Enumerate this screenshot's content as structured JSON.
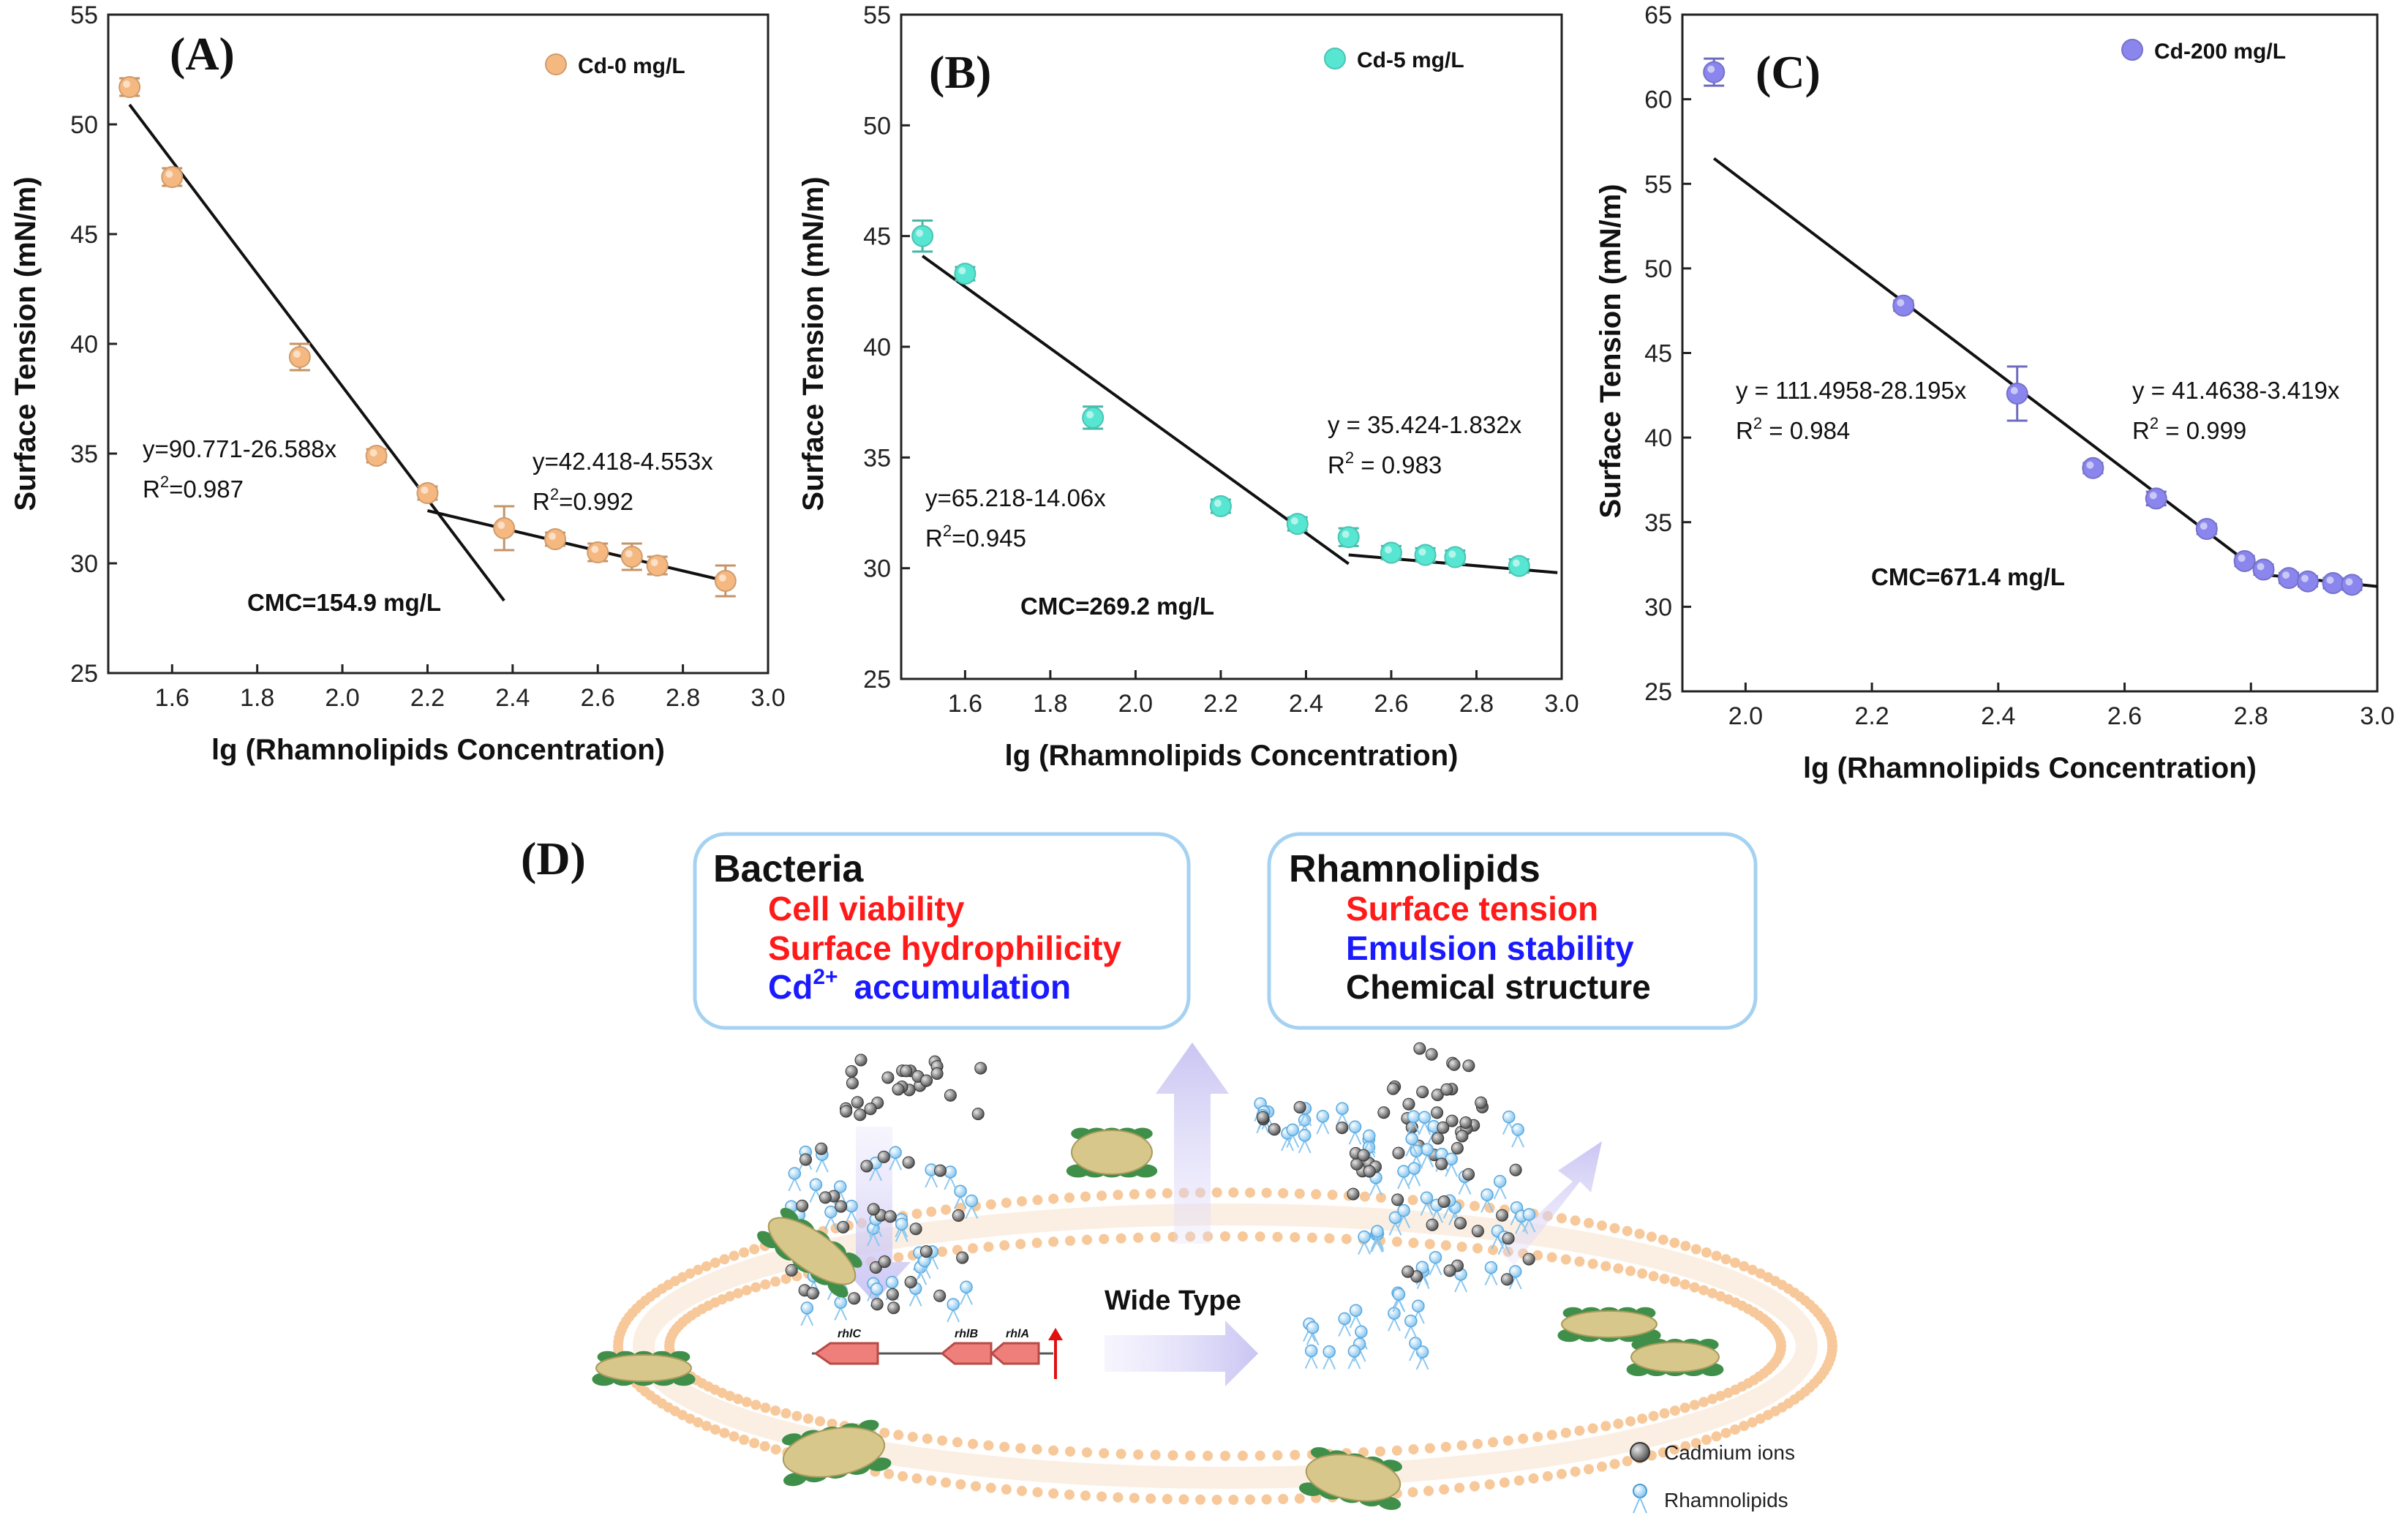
{
  "chart_data": [
    {
      "type": "scatter",
      "panel": "(A)",
      "legend": "Cd-0 mg/L",
      "color": "#f5b880",
      "xlabel": "lg (Rhamnolipids Concentration)",
      "ylabel": "Surface Tension (mN/m)",
      "xlim": [
        1.45,
        3.0
      ],
      "ylim": [
        25,
        55
      ],
      "xticks": [
        "1.6",
        "1.8",
        "2.0",
        "2.2",
        "2.4",
        "2.6",
        "2.8",
        "3.0"
      ],
      "yticks": [
        "25",
        "30",
        "35",
        "40",
        "45",
        "50",
        "55"
      ],
      "points": [
        {
          "x": 1.5,
          "y": 51.7,
          "err": 0.4
        },
        {
          "x": 1.6,
          "y": 47.6,
          "err": 0.4
        },
        {
          "x": 1.9,
          "y": 39.4,
          "err": 0.6
        },
        {
          "x": 2.08,
          "y": 34.9,
          "err": 0.3
        },
        {
          "x": 2.2,
          "y": 33.2,
          "err": 0.3
        },
        {
          "x": 2.38,
          "y": 31.6,
          "err": 1.0
        },
        {
          "x": 2.5,
          "y": 31.1,
          "err": 0.3
        },
        {
          "x": 2.6,
          "y": 30.5,
          "err": 0.4
        },
        {
          "x": 2.68,
          "y": 30.3,
          "err": 0.6
        },
        {
          "x": 2.74,
          "y": 29.9,
          "err": 0.4
        },
        {
          "x": 2.9,
          "y": 29.2,
          "err": 0.7
        }
      ],
      "fits": [
        {
          "x1": 1.5,
          "y1": 50.9,
          "x2": 2.38,
          "y2": 28.3
        },
        {
          "x1": 2.2,
          "y1": 32.4,
          "x2": 2.9,
          "y2": 29.2
        }
      ],
      "equations": [
        {
          "line1": "y=90.771-26.588x",
          "r2_prefix": "R",
          "r2_value": "=0.987"
        },
        {
          "line1": "y=42.418-4.553x",
          "r2_prefix": "R",
          "r2_value": "=0.992"
        }
      ],
      "cmc": "CMC=154.9 mg/L"
    },
    {
      "type": "scatter",
      "panel": "(B)",
      "legend": "Cd-5 mg/L",
      "color": "#57e6d2",
      "xlabel": "lg (Rhamnolipids Concentration)",
      "ylabel": "Surface Tension (mN/m)",
      "xlim": [
        1.45,
        3.0
      ],
      "ylim": [
        25,
        55
      ],
      "xticks": [
        "1.6",
        "1.8",
        "2.0",
        "2.2",
        "2.4",
        "2.6",
        "2.8",
        "3.0"
      ],
      "yticks": [
        "25",
        "30",
        "35",
        "40",
        "45",
        "50",
        "55"
      ],
      "points": [
        {
          "x": 1.5,
          "y": 45.0,
          "err": 0.7
        },
        {
          "x": 1.6,
          "y": 43.3,
          "err": 0.3
        },
        {
          "x": 1.9,
          "y": 36.8,
          "err": 0.5
        },
        {
          "x": 2.2,
          "y": 32.8,
          "err": 0.3
        },
        {
          "x": 2.38,
          "y": 32.0,
          "err": 0.3
        },
        {
          "x": 2.5,
          "y": 31.4,
          "err": 0.4
        },
        {
          "x": 2.6,
          "y": 30.7,
          "err": 0.3
        },
        {
          "x": 2.68,
          "y": 30.6,
          "err": 0.3
        },
        {
          "x": 2.75,
          "y": 30.5,
          "err": 0.3
        },
        {
          "x": 2.9,
          "y": 30.1,
          "err": 0.3
        }
      ],
      "fits": [
        {
          "x1": 1.5,
          "y1": 44.1,
          "x2": 2.5,
          "y2": 30.2
        },
        {
          "x1": 2.5,
          "y1": 30.6,
          "x2": 2.99,
          "y2": 29.8
        }
      ],
      "equations": [
        {
          "line1": "y=65.218-14.06x",
          "r2_prefix": "R",
          "r2_value": "=0.945"
        },
        {
          "line1": "y = 35.424-1.832x",
          "r2_prefix": "R",
          "r2_value": " = 0.983"
        }
      ],
      "cmc": "CMC=269.2 mg/L"
    },
    {
      "type": "scatter",
      "panel": "(C)",
      "legend": "Cd-200 mg/L",
      "color": "#8a86ee",
      "xlabel": "lg (Rhamnolipids Concentration)",
      "ylabel": "Surface Tension (mN/m)",
      "xlim": [
        1.9,
        3.0
      ],
      "ylim": [
        25,
        65
      ],
      "xticks": [
        "2.0",
        "2.2",
        "2.4",
        "2.6",
        "2.8",
        "3.0"
      ],
      "yticks": [
        "25",
        "30",
        "35",
        "40",
        "45",
        "50",
        "55",
        "60",
        "65"
      ],
      "points": [
        {
          "x": 1.95,
          "y": 61.6,
          "err": 0.8
        },
        {
          "x": 2.25,
          "y": 47.8,
          "err": 0.3
        },
        {
          "x": 2.43,
          "y": 42.6,
          "err": 1.6
        },
        {
          "x": 2.55,
          "y": 38.2,
          "err": 0.3
        },
        {
          "x": 2.65,
          "y": 36.4,
          "err": 0.4
        },
        {
          "x": 2.73,
          "y": 34.6,
          "err": 0.3
        },
        {
          "x": 2.79,
          "y": 32.7,
          "err": 0.3
        },
        {
          "x": 2.82,
          "y": 32.2,
          "err": 0.3
        },
        {
          "x": 2.86,
          "y": 31.7,
          "err": 0.3
        },
        {
          "x": 2.89,
          "y": 31.5,
          "err": 0.3
        },
        {
          "x": 2.93,
          "y": 31.4,
          "err": 0.3
        },
        {
          "x": 2.96,
          "y": 31.3,
          "err": 0.3
        }
      ],
      "fits": [
        {
          "x1": 1.95,
          "y1": 56.5,
          "x2": 2.82,
          "y2": 31.9
        },
        {
          "x1": 2.82,
          "y1": 31.9,
          "x2": 3.0,
          "y2": 31.2
        }
      ],
      "equations": [
        {
          "line1": "y = 111.4958-28.195x",
          "r2_prefix": "R",
          "r2_value": " = 0.984"
        },
        {
          "line1": "y = 41.4638-3.419x",
          "r2_prefix": "R",
          "r2_value": " = 0.999"
        }
      ],
      "cmc": "CMC=671.4 mg/L"
    }
  ],
  "diagram": {
    "panel": "(D)",
    "bacteria_box": {
      "title": "Bacteria",
      "items": [
        {
          "text": "Cell viability",
          "color": "#ff1a1a"
        },
        {
          "text": "Surface hydrophilicity",
          "color": "#ff1a1a"
        }
      ],
      "cd_prefix": "Cd",
      "cd_superscript": "2+",
      "cd_suffix": "accumulation",
      "cd_color": "#1a1aff"
    },
    "rhamnolipids_box": {
      "title": "Rhamnolipids",
      "items": [
        {
          "text": "Surface tension",
          "color": "#ff1a1a"
        },
        {
          "text": "Emulsion stability",
          "color": "#1a1aff"
        },
        {
          "text": "Chemical structure",
          "color": "#111111"
        }
      ]
    },
    "center_label": "Wide Type",
    "genes": [
      "rhlC",
      "rhlB",
      "rhlA"
    ],
    "key": {
      "cadmium": "Cadmium ions",
      "rhamnolipids": "Rhamnolipids"
    }
  }
}
